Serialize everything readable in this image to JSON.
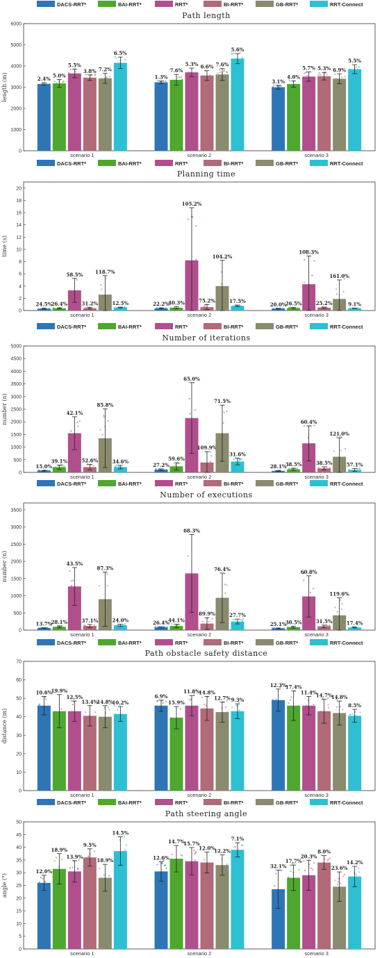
{
  "colors": {
    "DACS-RRT*": "#2e75b6",
    "BAI-RRT*": "#4ea72e",
    "RRT*": "#b04f8c",
    "BI-RRT*": "#b06a78",
    "GB-RRT*": "#8a8a6e",
    "RRT-Connect": "#2cc0d2"
  },
  "chart_data": [
    {
      "type": "bar",
      "title": "Path length",
      "ylabel": "length (m)",
      "ylim": [
        0,
        6000
      ],
      "yticks": [
        0,
        1000,
        2000,
        3000,
        4000,
        5000,
        6000
      ],
      "categories": [
        "scenario 1",
        "scenario 2",
        "scenario 3"
      ],
      "legend": "top",
      "series": [
        {
          "name": "DACS-RRT*",
          "values": [
            3150,
            3230,
            3000
          ],
          "errors": [
            60,
            60,
            90
          ],
          "labels": [
            "2.4%",
            "1.3%",
            "3.1%"
          ]
        },
        {
          "name": "BAI-RRT*",
          "values": [
            3180,
            3350,
            3150
          ],
          "errors": [
            180,
            250,
            150
          ],
          "labels": [
            "5.0%",
            "7.6%",
            "4.0%"
          ]
        },
        {
          "name": "RRT*",
          "values": [
            3650,
            3700,
            3500
          ],
          "errors": [
            200,
            200,
            220
          ],
          "labels": [
            "5.5%",
            "5.3%",
            "5.7%"
          ]
        },
        {
          "name": "BI-RRT*",
          "values": [
            3450,
            3550,
            3520
          ],
          "errors": [
            130,
            230,
            180
          ],
          "labels": [
            "3.8%",
            "6.6%",
            "5.3%"
          ]
        },
        {
          "name": "GB-RRT*",
          "values": [
            3420,
            3600,
            3400
          ],
          "errors": [
            240,
            280,
            230
          ],
          "labels": [
            "7.2%",
            "7.6%",
            "6.9%"
          ]
        },
        {
          "name": "RRT-Connect",
          "values": [
            4150,
            4350,
            3850
          ],
          "errors": [
            270,
            240,
            210
          ],
          "labels": [
            "6.5%",
            "5.6%",
            "5.5%"
          ]
        }
      ]
    },
    {
      "type": "bar",
      "title": "Planning time",
      "ylabel": "time (s)",
      "ylim": [
        0,
        21
      ],
      "yticks": [
        0,
        2,
        4,
        6,
        8,
        10,
        12,
        14,
        16,
        18,
        20
      ],
      "categories": [
        "scenario 1",
        "scenario 2",
        "scenario 3"
      ],
      "legend": "top",
      "series": [
        {
          "name": "DACS-RRT*",
          "values": [
            0.3,
            0.35,
            0.3
          ],
          "errors": [
            0.08,
            0.08,
            0.06
          ],
          "labels": [
            "24.5%",
            "22.2%",
            "20.0%"
          ]
        },
        {
          "name": "BAI-RRT*",
          "values": [
            0.35,
            0.45,
            0.4
          ],
          "errors": [
            0.1,
            0.18,
            0.1
          ],
          "labels": [
            "26.4%",
            "40.3%",
            "26.5%"
          ]
        },
        {
          "name": "RRT*",
          "values": [
            3.3,
            8.2,
            4.3
          ],
          "errors": [
            1.95,
            8.6,
            4.6
          ],
          "labels": [
            "58.5%",
            "105.2%",
            "108.3%"
          ]
        },
        {
          "name": "BI-RRT*",
          "values": [
            0.38,
            0.55,
            0.45
          ],
          "errors": [
            0.12,
            0.4,
            0.11
          ],
          "labels": [
            "31.2%",
            "75.2%",
            "25.2%"
          ]
        },
        {
          "name": "GB-RRT*",
          "values": [
            2.6,
            4.0,
            1.9
          ],
          "errors": [
            3.1,
            4.2,
            3.1
          ],
          "labels": [
            "118.7%",
            "104.2%",
            "161.0%"
          ]
        },
        {
          "name": "RRT-Connect",
          "values": [
            0.5,
            0.75,
            0.35
          ],
          "errors": [
            0.06,
            0.13,
            0.03
          ],
          "labels": [
            "12.5%",
            "17.5%",
            "9.1%"
          ]
        }
      ]
    },
    {
      "type": "bar",
      "title": "Number of iterations",
      "ylabel": "number (n)",
      "ylim": [
        0,
        5000
      ],
      "yticks": [
        0,
        500,
        1000,
        1500,
        2000,
        2500,
        3000,
        3500,
        4000,
        4500,
        5000
      ],
      "categories": [
        "scenario 1",
        "scenario 2",
        "scenario 3"
      ],
      "legend": "top",
      "series": [
        {
          "name": "DACS-RRT*",
          "values": [
            70,
            110,
            60
          ],
          "errors": [
            12,
            30,
            17
          ],
          "labels": [
            "15.0%",
            "27.2%",
            "28.1%"
          ]
        },
        {
          "name": "BAI-RRT*",
          "values": [
            210,
            240,
            120
          ],
          "errors": [
            80,
            140,
            45
          ],
          "labels": [
            "39.1%",
            "59.6%",
            "38.5%"
          ]
        },
        {
          "name": "RRT*",
          "values": [
            1550,
            2150,
            1150
          ],
          "errors": [
            650,
            1400,
            690
          ],
          "labels": [
            "42.1%",
            "65.0%",
            "60.4%"
          ]
        },
        {
          "name": "BI-RRT*",
          "values": [
            210,
            390,
            160
          ],
          "errors": [
            110,
            430,
            60
          ],
          "labels": [
            "52.6%",
            "109.9%",
            "38.5%"
          ]
        },
        {
          "name": "GB-RRT*",
          "values": [
            1350,
            1550,
            620
          ],
          "errors": [
            1160,
            1110,
            750
          ],
          "labels": [
            "85.8%",
            "71.5%",
            "121.0%"
          ]
        },
        {
          "name": "RRT-Connect",
          "values": [
            210,
            430,
            100
          ],
          "errors": [
            70,
            130,
            55
          ],
          "labels": [
            "34.6%",
            "31.6%",
            "57.1%"
          ]
        }
      ]
    },
    {
      "type": "bar",
      "title": "Number of executions",
      "ylabel": "number (n)",
      "ylim": [
        0,
        3700
      ],
      "yticks": [
        0,
        500,
        1000,
        1500,
        2000,
        2500,
        3000,
        3500
      ],
      "categories": [
        "scenario 1",
        "scenario 2",
        "scenario 3"
      ],
      "legend": "top",
      "series": [
        {
          "name": "DACS-RRT*",
          "values": [
            60,
            80,
            50
          ],
          "errors": [
            8,
            20,
            12
          ],
          "labels": [
            "13.7%",
            "26.4%",
            "25.1%"
          ]
        },
        {
          "name": "BAI-RRT*",
          "values": [
            95,
            120,
            85
          ],
          "errors": [
            27,
            53,
            26
          ],
          "labels": [
            "28.1%",
            "44.1%",
            "30.5%"
          ]
        },
        {
          "name": "RRT*",
          "values": [
            1270,
            1650,
            980
          ],
          "errors": [
            550,
            1130,
            600
          ],
          "labels": [
            "43.5%",
            "68.3%",
            "60.8%"
          ]
        },
        {
          "name": "BI-RRT*",
          "values": [
            120,
            190,
            110
          ],
          "errors": [
            45,
            170,
            35
          ],
          "labels": [
            "37.1%",
            "89.9%",
            "31.5%"
          ]
        },
        {
          "name": "GB-RRT*",
          "values": [
            900,
            940,
            430
          ],
          "errors": [
            790,
            720,
            510
          ],
          "labels": [
            "87.3%",
            "76.4%",
            "119.6%"
          ]
        },
        {
          "name": "RRT-Connect",
          "values": [
            140,
            250,
            75
          ],
          "errors": [
            34,
            70,
            13
          ],
          "labels": [
            "24.0%",
            "27.7%",
            "17.4%"
          ]
        }
      ]
    },
    {
      "type": "bar",
      "title": "Path obstacle safety distance",
      "ylabel": "distance (m)",
      "ylim": [
        0,
        70
      ],
      "yticks": [
        0,
        10,
        20,
        30,
        40,
        50,
        60,
        70
      ],
      "categories": [
        "scenario 1",
        "scenario 2",
        "scenario 3"
      ],
      "legend": "top",
      "series": [
        {
          "name": "DACS-RRT*",
          "values": [
            46,
            46,
            49
          ],
          "errors": [
            5,
            3,
            6
          ],
          "labels": [
            "10.6%",
            "6.9%",
            "12.3%"
          ]
        },
        {
          "name": "BAI-RRT*",
          "values": [
            43,
            39.5,
            46
          ],
          "errors": [
            9,
            6,
            8
          ],
          "labels": [
            "19.9%",
            "15.9%",
            "17.4%"
          ]
        },
        {
          "name": "RRT*",
          "values": [
            43,
            46,
            46
          ],
          "errors": [
            5.5,
            5.5,
            5
          ],
          "labels": [
            "12.5%",
            "11.8%",
            "11.4%"
          ]
        },
        {
          "name": "BI-RRT*",
          "values": [
            40.5,
            44.5,
            43
          ],
          "errors": [
            5.5,
            6.5,
            6.5
          ],
          "labels": [
            "13.4%",
            "14.8%",
            "14.7%"
          ]
        },
        {
          "name": "GB-RRT*",
          "values": [
            40,
            42.5,
            42
          ],
          "errors": [
            6,
            5.5,
            6.5
          ],
          "labels": [
            "14.8%",
            "12.7%",
            "14.8%"
          ]
        },
        {
          "name": "RRT-Connect",
          "values": [
            41.5,
            43,
            40.5
          ],
          "errors": [
            4,
            4,
            3.5
          ],
          "labels": [
            "10.2%",
            "9.3%",
            "8.5%"
          ]
        }
      ]
    },
    {
      "type": "bar",
      "title": "Path steering angle",
      "ylabel": "angle (°)",
      "ylim": [
        0,
        50
      ],
      "yticks": [
        0,
        5,
        10,
        15,
        20,
        25,
        30,
        35,
        40,
        45,
        50
      ],
      "categories": [
        "scenario 1",
        "scenario 2",
        "scenario 3"
      ],
      "legend": "top",
      "series": [
        {
          "name": "DACS-RRT*",
          "values": [
            26,
            30.5,
            23.5
          ],
          "errors": [
            3,
            3.8,
            7.5
          ],
          "labels": [
            "12.0%",
            "12.6%",
            "32.1%"
          ]
        },
        {
          "name": "BAI-RRT*",
          "values": [
            31.5,
            35.5,
            28
          ],
          "errors": [
            6,
            5.2,
            5
          ],
          "labels": [
            "18.9%",
            "14.7%",
            "17.7%"
          ]
        },
        {
          "name": "RRT*",
          "values": [
            30.5,
            34.5,
            29
          ],
          "errors": [
            4.2,
            5.4,
            5.9
          ],
          "labels": [
            "13.9%",
            "15.7%",
            "20.3%"
          ]
        },
        {
          "name": "BI-RRT*",
          "values": [
            36,
            34,
            34
          ],
          "errors": [
            3.4,
            4.1,
            2.7
          ],
          "labels": [
            "9.5%",
            "12.0%",
            "8.0%"
          ]
        },
        {
          "name": "GB-RRT*",
          "values": [
            28,
            33,
            24.5
          ],
          "errors": [
            5.3,
            4,
            5.8
          ],
          "labels": [
            "18.9%",
            "12.2%",
            "23.6%"
          ]
        },
        {
          "name": "RRT-Connect",
          "values": [
            38.5,
            39,
            28.5
          ],
          "errors": [
            5.6,
            2.8,
            4
          ],
          "labels": [
            "14.5%",
            "7.1%",
            "14.2%"
          ]
        }
      ]
    }
  ]
}
